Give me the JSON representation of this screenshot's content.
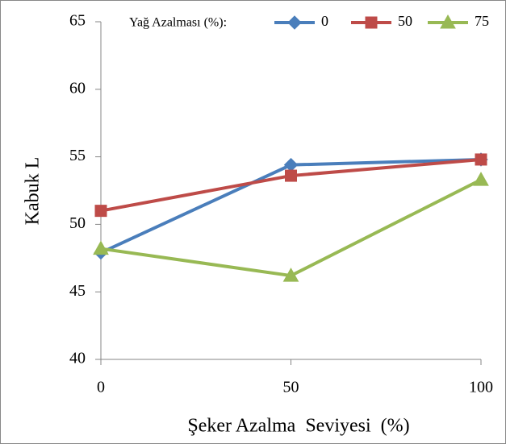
{
  "chart_data": {
    "type": "line",
    "xlabel": "Şeker Azalma  Seviyesi  (%)",
    "ylabel": "Kabuk L",
    "legend_title": "Yağ Azalması (%):",
    "x": [
      0,
      50,
      100
    ],
    "xlim": [
      0,
      100
    ],
    "xticks": [
      0,
      50,
      100
    ],
    "ylim": [
      40,
      65
    ],
    "yticks": [
      40,
      45,
      50,
      55,
      60,
      65
    ],
    "grid": false,
    "series": [
      {
        "name": "0",
        "color": "#4a7ebb",
        "marker": "diamond",
        "values": [
          47.9,
          54.4,
          54.8
        ]
      },
      {
        "name": "50",
        "color": "#be4b48",
        "marker": "square",
        "values": [
          51.0,
          53.6,
          54.8
        ]
      },
      {
        "name": "75",
        "color": "#98b954",
        "marker": "triangle",
        "values": [
          48.2,
          46.2,
          53.3
        ]
      }
    ]
  }
}
